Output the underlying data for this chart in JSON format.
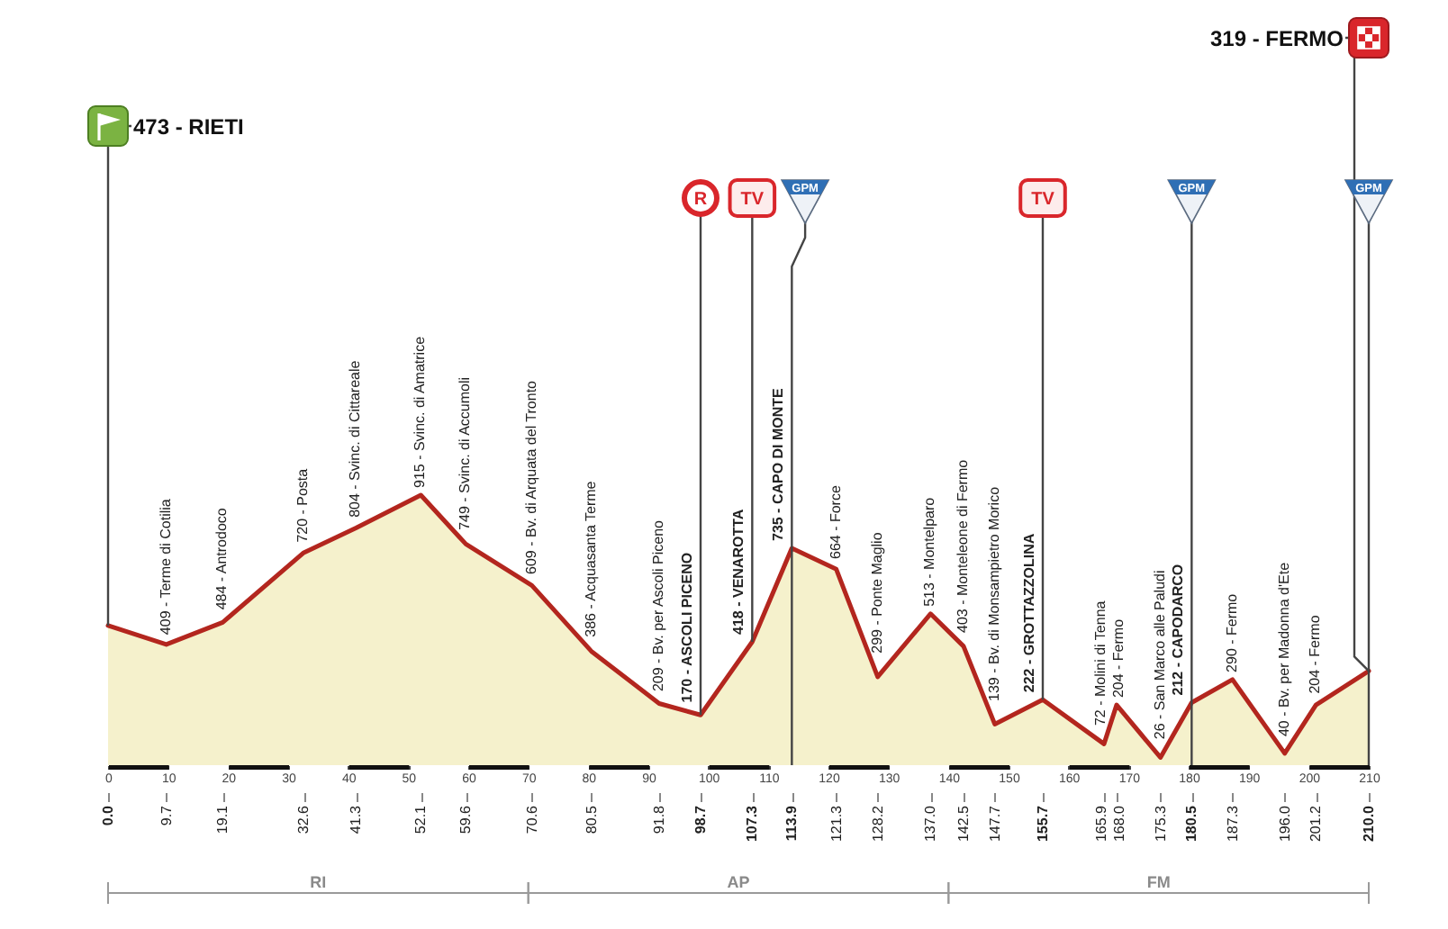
{
  "chart_data": {
    "type": "area",
    "x": [
      0,
      9.7,
      19.1,
      32.6,
      41.3,
      52.1,
      59.6,
      70.6,
      80.5,
      91.8,
      98.7,
      107.3,
      113.9,
      121.3,
      128.2,
      137,
      142.5,
      147.7,
      155.7,
      165.9,
      168,
      175.3,
      180.5,
      187.3,
      196,
      201.2,
      210
    ],
    "series": [
      {
        "color": "#f5f1cc",
        "values": [
          473,
          409,
          484,
          720,
          804,
          915,
          749,
          609,
          386,
          209,
          170,
          418,
          735,
          664,
          299,
          513,
          403,
          139,
          222,
          72,
          204,
          26,
          212,
          290,
          40,
          204,
          319
        ],
        "value_labels": [
          null,
          "409 - Terme di Cotilia",
          "484 - Antrodoco",
          "720 - Posta",
          "804 - Svinc. di Cittareale",
          "915 - Svinc. di Amatrice",
          "749 - Svinc. di Accumoli",
          "609 - Bv. di Arquata del Tronto",
          "386 - Acquasanta Terme",
          "209 - Bv. per Ascoli Piceno",
          "170 - ASCOLI PICENO",
          "418 - VENAROTTA",
          "735 - CAPO DI MONTE",
          "664 - Force",
          "299 - Ponte Maglio",
          "513 - Montelparo",
          "403 - Monteleone di Fermo",
          "139 - Bv. di Monsampietro Morico",
          "222 - GROTTAZZOLINA",
          "72 - Molini di Tenna",
          "204 - Fermo",
          "26 - San Marco alle Paludi",
          "212 - CAPODARCO",
          "290 - Fermo",
          "40 - Bv. per Madonna d'Ete",
          "204 - Fermo",
          null
        ]
      }
    ],
    "xlim": [
      0,
      210
    ],
    "xticks": [
      {
        "value": 0,
        "label": "0.0"
      },
      9.7,
      19.1,
      32.6,
      41.3,
      52.1,
      59.6,
      70.6,
      80.5,
      91.8,
      98.7,
      107.3,
      113.9,
      121.3,
      128.2,
      {
        "value": 137,
        "label": "137.0"
      },
      142.5,
      147.7,
      155.7,
      165.9,
      {
        "value": 168,
        "label": "168.0"
      },
      175.3,
      180.5,
      187.3,
      {
        "value": 196,
        "label": "196.0"
      },
      201.2,
      {
        "value": 210,
        "label": "210.0"
      }
    ],
    "x2lim": [
      0,
      210
    ],
    "x2ticks": [
      0,
      10,
      20,
      30,
      40,
      50,
      60,
      70,
      80,
      90,
      100,
      110,
      120,
      130,
      140,
      150,
      160,
      170,
      180,
      190,
      200,
      210
    ],
    "tick_labels": "x",
    "annotations": [
      {
        "text": "473 - RIETI",
        "x": 0,
        "y": 473
      },
      {
        "text": "319 - FERMO",
        "x": 210,
        "y": 319
      },
      {
        "text": "R",
        "x": 98.7,
        "y": 170
      },
      {
        "text": "TV",
        "x": 107.3,
        "y": 418
      },
      {
        "text": "TV",
        "x": 155.7,
        "y": 222
      },
      "RI",
      "AP",
      "FM"
    ],
    "ref_lines": [
      {
        "axis": "x",
        "value": 113.9,
        "label": "GPM"
      },
      {
        "axis": "x",
        "value": 180.5,
        "label": "GPM"
      },
      {
        "axis": "x",
        "value": 210,
        "label": "GPM"
      }
    ]
  }
}
